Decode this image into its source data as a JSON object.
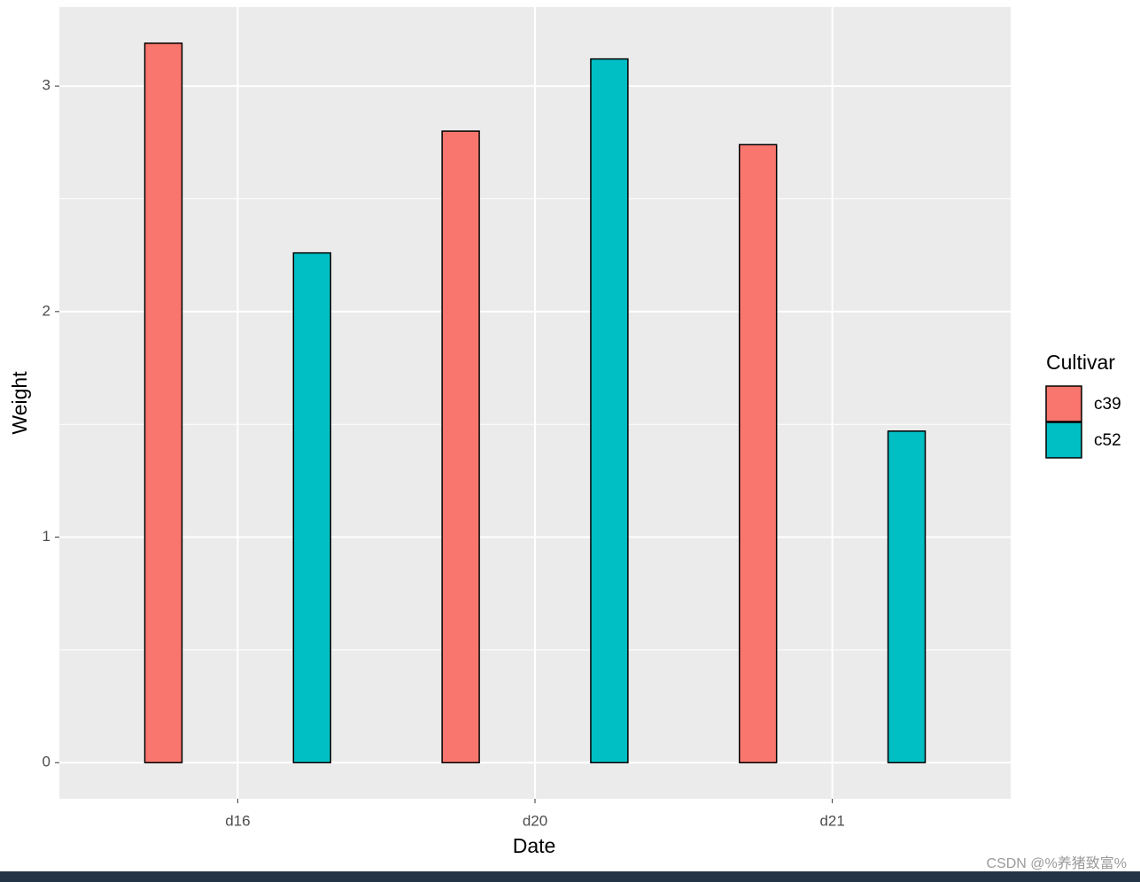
{
  "chart_data": {
    "type": "bar",
    "x_label": "Date",
    "y_label": "Weight",
    "categories": [
      "d16",
      "d20",
      "d21"
    ],
    "legend_title": "Cultivar",
    "series": [
      {
        "name": "c39",
        "color": "#F8766D",
        "values": [
          3.19,
          2.8,
          2.74
        ]
      },
      {
        "name": "c52",
        "color": "#00BFC4",
        "values": [
          2.26,
          3.12,
          1.47
        ]
      }
    ],
    "ylim": [
      -0.16,
      3.35
    ],
    "yticks": [
      0,
      1,
      2,
      3
    ],
    "grid": true,
    "legend": "right"
  },
  "watermark": "CSDN @%养猪致富%"
}
